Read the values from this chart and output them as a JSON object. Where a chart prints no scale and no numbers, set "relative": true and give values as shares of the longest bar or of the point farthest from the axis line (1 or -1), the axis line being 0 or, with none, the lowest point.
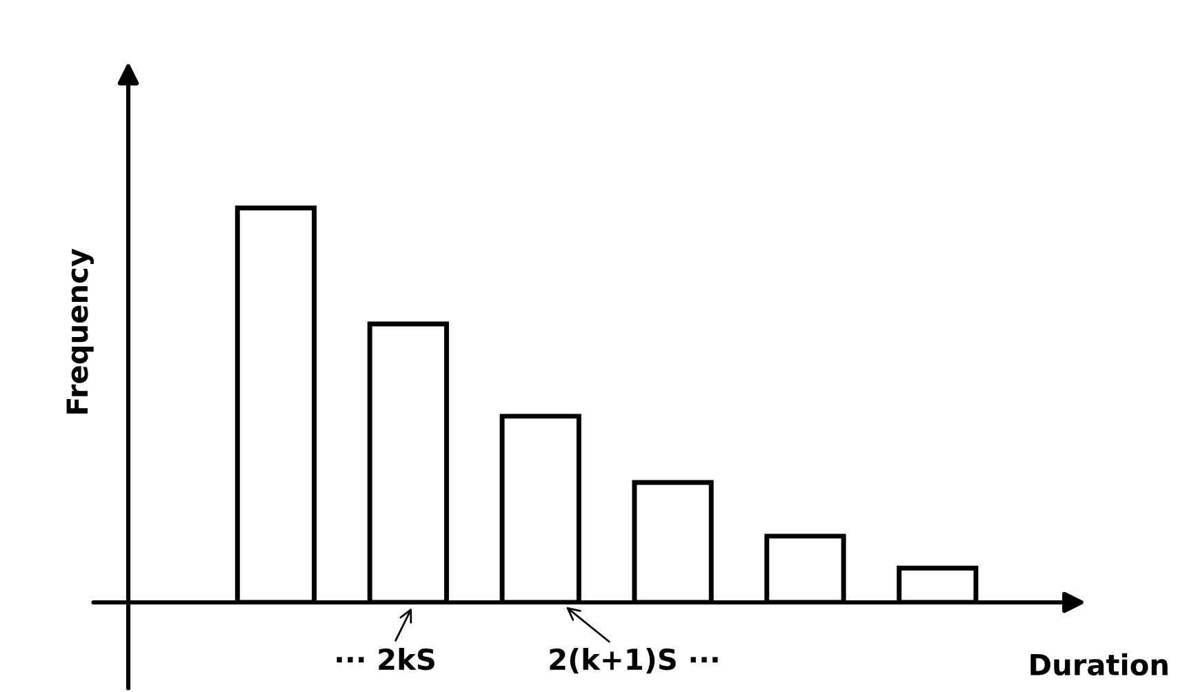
{
  "chart_data": {
    "type": "bar",
    "relative": true,
    "xlabel": "Duration",
    "ylabel": "Frequency",
    "categories": [
      null,
      null,
      null,
      null,
      null,
      null
    ],
    "values": [
      1,
      0.706,
      0.472,
      0.304,
      0.168,
      0.087
    ],
    "color": "#ffffff",
    "annotations": [
      "··· 2kS",
      "2(k+1)S ···"
    ]
  }
}
